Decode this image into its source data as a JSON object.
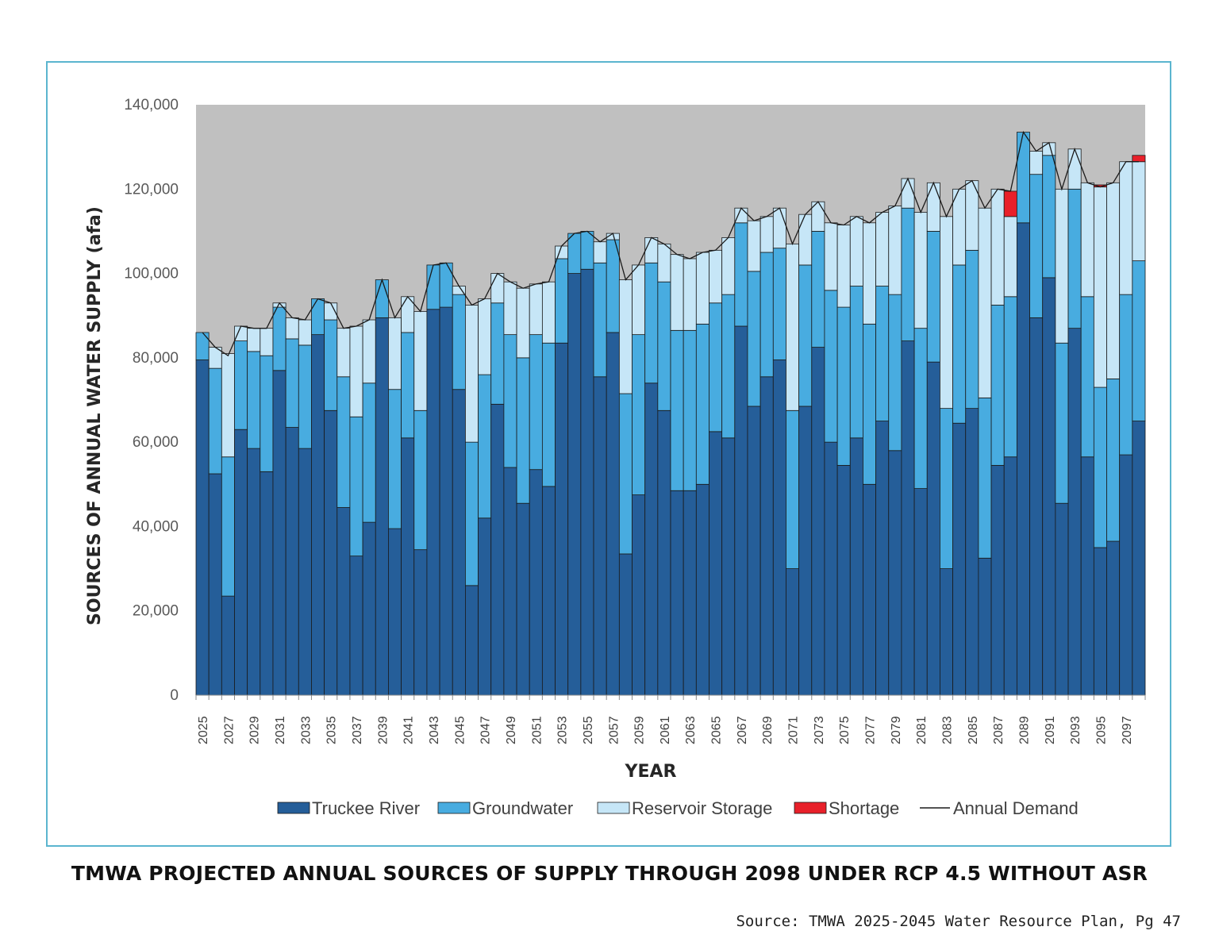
{
  "figure": {
    "title": "TMWA PROJECTED ANNUAL SOURCES OF SUPPLY THROUGH 2098 UNDER RCP 4.5 WITHOUT ASR",
    "source": "Source: TMWA 2025-2045 Water Resource Plan, Pg 47"
  },
  "chart_data": {
    "type": "bar",
    "stacked": true,
    "title": "TMWA PROJECTED ANNUAL SOURCES OF SUPPLY THROUGH 2098 UNDER RCP 4.5 WITHOUT ASR",
    "xlabel": "YEAR",
    "ylabel": "SOURCES OF ANNUAL WATER SUPPLY (afa)",
    "ylim": [
      0,
      140000
    ],
    "yticks": [
      0,
      20000,
      40000,
      60000,
      80000,
      100000,
      120000,
      140000
    ],
    "ytick_labels": [
      "0",
      "20,000",
      "40,000",
      "60,000",
      "80,000",
      "100,000",
      "120,000",
      "140,000"
    ],
    "plot_background": "#c0c0c0",
    "grid": false,
    "legend_position": "bottom",
    "categories": [
      2025,
      2026,
      2027,
      2028,
      2029,
      2030,
      2031,
      2032,
      2033,
      2034,
      2035,
      2036,
      2037,
      2038,
      2039,
      2040,
      2041,
      2042,
      2043,
      2044,
      2045,
      2046,
      2047,
      2048,
      2049,
      2050,
      2051,
      2052,
      2053,
      2054,
      2055,
      2056,
      2057,
      2058,
      2059,
      2060,
      2061,
      2062,
      2063,
      2064,
      2065,
      2066,
      2067,
      2068,
      2069,
      2070,
      2071,
      2072,
      2073,
      2074,
      2075,
      2076,
      2077,
      2078,
      2079,
      2080,
      2081,
      2082,
      2083,
      2084,
      2085,
      2086,
      2087,
      2088,
      2089,
      2090,
      2091,
      2092,
      2093,
      2094,
      2095,
      2096,
      2097,
      2098
    ],
    "xtick_labels": [
      "2025",
      "2027",
      "2029",
      "2031",
      "2033",
      "2035",
      "2037",
      "2039",
      "2041",
      "2043",
      "2045",
      "2047",
      "2049",
      "2051",
      "2053",
      "2055",
      "2057",
      "2059",
      "2061",
      "2063",
      "2065",
      "2067",
      "2069",
      "2071",
      "2073",
      "2075",
      "2077",
      "2079",
      "2081",
      "2083",
      "2085",
      "2087",
      "2089",
      "2091",
      "2093",
      "2095",
      "2097"
    ],
    "series": [
      {
        "name": "Truckee River",
        "color": "#255e99",
        "values": [
          79500,
          52500,
          23500,
          63000,
          58500,
          53000,
          77000,
          63500,
          58500,
          85500,
          67500,
          44500,
          33000,
          41000,
          89500,
          39500,
          61000,
          34500,
          91500,
          92000,
          72500,
          26000,
          42000,
          69000,
          54000,
          45500,
          53500,
          49500,
          83500,
          100000,
          101000,
          75500,
          86000,
          33500,
          47500,
          74000,
          67500,
          48500,
          48500,
          50000,
          62500,
          61000,
          87500,
          68500,
          75500,
          79500,
          30000,
          68500,
          82500,
          60000,
          54500,
          61000,
          50000,
          65000,
          58000,
          84000,
          49000,
          79000,
          30000,
          64500,
          68000,
          32500,
          54500,
          56500,
          112000,
          89500,
          99000,
          45500,
          87000,
          56500,
          35000,
          36500,
          57000,
          65000
        ]
      },
      {
        "name": "Groundwater",
        "color": "#48ace0",
        "values": [
          6500,
          25000,
          33000,
          21000,
          23000,
          27500,
          15000,
          21000,
          24500,
          8500,
          21500,
          31000,
          33000,
          33000,
          9000,
          33000,
          25000,
          33000,
          10500,
          10500,
          22500,
          34000,
          34000,
          24000,
          31500,
          34500,
          32000,
          34000,
          20000,
          9500,
          9000,
          27000,
          22000,
          38000,
          38000,
          28500,
          30500,
          38000,
          38000,
          38000,
          30500,
          34000,
          24500,
          32000,
          29500,
          26500,
          37500,
          33500,
          27500,
          36000,
          37500,
          36000,
          38000,
          32000,
          37000,
          31500,
          38000,
          31000,
          38000,
          37500,
          37500,
          38000,
          38000,
          38000,
          21500,
          34000,
          29000,
          38000,
          33000,
          38000,
          38000,
          38500,
          38000,
          38000
        ]
      },
      {
        "name": "Reservoir Storage",
        "color": "#c6e6f7",
        "values": [
          0,
          5000,
          24500,
          3500,
          5500,
          6500,
          1000,
          5000,
          6000,
          0,
          4000,
          11500,
          21500,
          15000,
          0,
          17000,
          8500,
          23500,
          0,
          0,
          2000,
          32500,
          18000,
          7000,
          12500,
          16500,
          12000,
          14500,
          3000,
          0,
          0,
          5000,
          1500,
          27000,
          16500,
          6000,
          9000,
          18000,
          17000,
          17000,
          12500,
          13500,
          3500,
          12000,
          8500,
          9500,
          39500,
          12000,
          7000,
          16000,
          19500,
          16500,
          24000,
          17500,
          21000,
          7000,
          27500,
          11500,
          45500,
          18000,
          16500,
          45000,
          27500,
          19000,
          0,
          5500,
          3000,
          36500,
          9500,
          27000,
          47500,
          46500,
          31500,
          23500
        ]
      },
      {
        "name": "Shortage",
        "color": "#e8202a",
        "values": [
          0,
          0,
          0,
          0,
          0,
          0,
          0,
          0,
          0,
          0,
          0,
          0,
          0,
          0,
          0,
          0,
          0,
          0,
          0,
          0,
          0,
          0,
          0,
          0,
          0,
          0,
          0,
          0,
          0,
          0,
          0,
          0,
          0,
          0,
          0,
          0,
          0,
          0,
          0,
          0,
          0,
          0,
          0,
          0,
          0,
          0,
          0,
          0,
          0,
          0,
          0,
          0,
          0,
          0,
          0,
          0,
          0,
          0,
          0,
          0,
          0,
          0,
          0,
          6000,
          0,
          0,
          0,
          0,
          0,
          0,
          500,
          0,
          0,
          1500
        ]
      },
      {
        "name": "Annual Demand",
        "type": "line",
        "color": "#1a1a1a",
        "values": [
          86000,
          82500,
          80500,
          87500,
          87000,
          87000,
          93000,
          89500,
          89000,
          94000,
          93000,
          87000,
          87500,
          89000,
          98500,
          89500,
          94500,
          91000,
          102000,
          102500,
          97000,
          92500,
          94000,
          100000,
          98000,
          96500,
          97500,
          98000,
          106500,
          109500,
          110000,
          107500,
          109500,
          98500,
          102000,
          108500,
          107000,
          104500,
          103500,
          105000,
          105500,
          108500,
          115500,
          112500,
          113500,
          115500,
          107000,
          114000,
          117000,
          112000,
          111500,
          113500,
          112000,
          114500,
          116000,
          122500,
          114500,
          121500,
          113500,
          120000,
          122000,
          115500,
          120000,
          119500,
          133500,
          129000,
          131000,
          120000,
          129500,
          121500,
          120500,
          121500,
          126500,
          126500
        ]
      }
    ]
  }
}
